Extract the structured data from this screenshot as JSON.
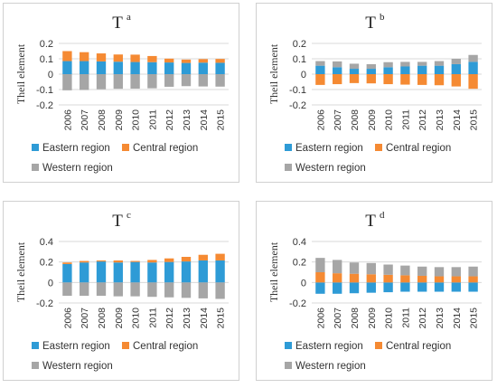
{
  "colors": {
    "Eastern region": "#2e9bd6",
    "Central region": "#f58a33",
    "Western region": "#a6a6a6"
  },
  "chart_data": [
    {
      "type": "bar",
      "stacked": true,
      "title": "T",
      "title_sup": "a",
      "ylabel": "Theil element",
      "xlabel": "",
      "ylim": [
        -0.2,
        0.2
      ],
      "yticks": [
        "0.2",
        "0.1",
        "0",
        "-0.1",
        "-0.2"
      ],
      "ytick_values": [
        0.2,
        0.1,
        0,
        -0.1,
        -0.2
      ],
      "grid": true,
      "legend_position": "bottom",
      "categories": [
        "2006",
        "2007",
        "2008",
        "2009",
        "2010",
        "2011",
        "2012",
        "2013",
        "2014",
        "2015"
      ],
      "series": [
        {
          "name": "Eastern region",
          "values": [
            0.085,
            0.085,
            0.083,
            0.081,
            0.079,
            0.078,
            0.076,
            0.073,
            0.075,
            0.074
          ]
        },
        {
          "name": "Central region",
          "values": [
            0.065,
            0.058,
            0.052,
            0.047,
            0.048,
            0.04,
            0.025,
            0.022,
            0.023,
            0.025
          ]
        },
        {
          "name": "Western region",
          "values": [
            -0.105,
            -0.103,
            -0.098,
            -0.095,
            -0.094,
            -0.092,
            -0.082,
            -0.078,
            -0.08,
            -0.081
          ]
        }
      ]
    },
    {
      "type": "bar",
      "stacked": true,
      "title": "T",
      "title_sup": "b",
      "ylabel": "Theil element",
      "xlabel": "",
      "ylim": [
        -0.2,
        0.2
      ],
      "yticks": [
        "0.2",
        "0.1",
        "0",
        "-0.1",
        "-0.2"
      ],
      "ytick_values": [
        0.2,
        0.1,
        0,
        -0.1,
        -0.2
      ],
      "grid": true,
      "legend_position": "bottom",
      "categories": [
        "2006",
        "2007",
        "2008",
        "2009",
        "2010",
        "2011",
        "2012",
        "2013",
        "2014",
        "2015"
      ],
      "series": [
        {
          "name": "Eastern region",
          "values": [
            0.055,
            0.045,
            0.035,
            0.035,
            0.045,
            0.05,
            0.055,
            0.055,
            0.065,
            0.08
          ]
        },
        {
          "name": "Central region",
          "values": [
            -0.07,
            -0.065,
            -0.058,
            -0.06,
            -0.065,
            -0.068,
            -0.07,
            -0.072,
            -0.08,
            -0.095
          ]
        },
        {
          "name": "Western region",
          "values": [
            0.03,
            0.038,
            0.033,
            0.03,
            0.033,
            0.03,
            0.025,
            0.03,
            0.035,
            0.045
          ]
        }
      ]
    },
    {
      "type": "bar",
      "stacked": true,
      "title": "T",
      "title_sup": "c",
      "ylabel": "Theil element",
      "xlabel": "",
      "ylim": [
        -0.2,
        0.4
      ],
      "yticks": [
        "0.4",
        "0.2",
        "0",
        "-0.2"
      ],
      "ytick_values": [
        0.4,
        0.2,
        0,
        -0.2
      ],
      "grid": true,
      "legend_position": "bottom",
      "categories": [
        "2006",
        "2007",
        "2008",
        "2009",
        "2010",
        "2011",
        "2012",
        "2013",
        "2014",
        "2015"
      ],
      "series": [
        {
          "name": "Eastern region",
          "values": [
            0.18,
            0.195,
            0.205,
            0.195,
            0.2,
            0.195,
            0.2,
            0.205,
            0.215,
            0.215
          ]
        },
        {
          "name": "Central region",
          "values": [
            0.015,
            0.015,
            0.01,
            0.02,
            0.01,
            0.025,
            0.035,
            0.045,
            0.055,
            0.065
          ]
        },
        {
          "name": "Western region",
          "values": [
            -0.13,
            -0.13,
            -0.13,
            -0.135,
            -0.135,
            -0.14,
            -0.145,
            -0.15,
            -0.155,
            -0.16
          ]
        }
      ]
    },
    {
      "type": "bar",
      "stacked": true,
      "title": "T",
      "title_sup": "d",
      "ylabel": "Theil element",
      "xlabel": "",
      "ylim": [
        -0.2,
        0.4
      ],
      "yticks": [
        "0.4",
        "0.2",
        "0",
        "-0.2"
      ],
      "ytick_values": [
        0.4,
        0.2,
        0,
        -0.2
      ],
      "grid": true,
      "legend_position": "bottom",
      "categories": [
        "2006",
        "2007",
        "2008",
        "2009",
        "2010",
        "2011",
        "2012",
        "2013",
        "2014",
        "2015"
      ],
      "series": [
        {
          "name": "Eastern region",
          "values": [
            -0.11,
            -0.11,
            -0.105,
            -0.1,
            -0.095,
            -0.09,
            -0.09,
            -0.09,
            -0.09,
            -0.09
          ]
        },
        {
          "name": "Central region",
          "values": [
            0.1,
            0.09,
            0.085,
            0.08,
            0.075,
            0.07,
            0.065,
            0.06,
            0.06,
            0.06
          ]
        },
        {
          "name": "Western region",
          "values": [
            0.14,
            0.13,
            0.11,
            0.11,
            0.1,
            0.095,
            0.09,
            0.09,
            0.09,
            0.095
          ]
        }
      ]
    }
  ]
}
